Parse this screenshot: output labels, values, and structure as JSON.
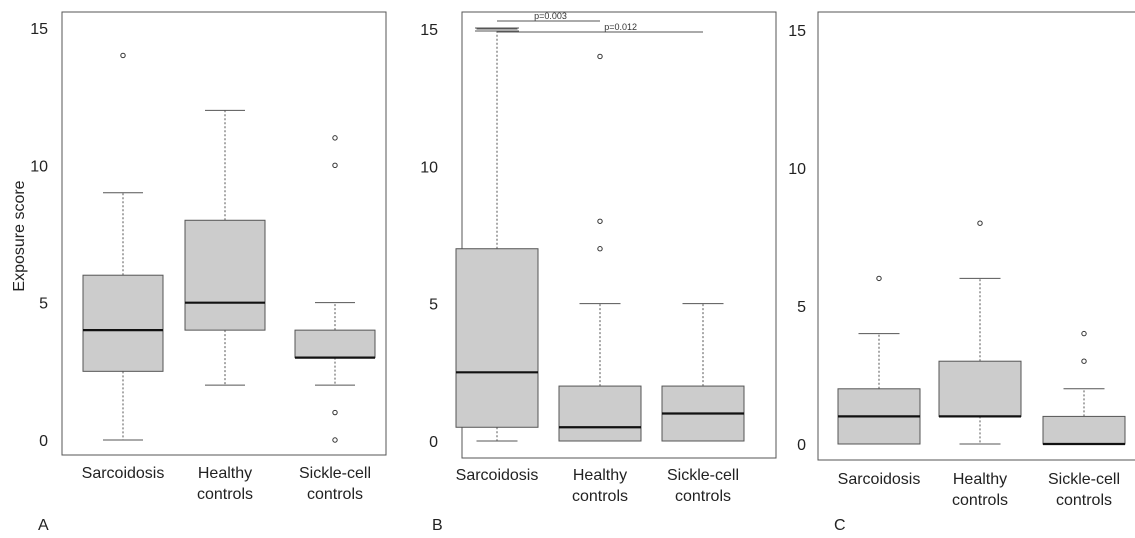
{
  "chart_data": [
    {
      "type": "box",
      "panel_label": "A",
      "ylabel": "Exposure score",
      "yticks": [
        0,
        5,
        10,
        15
      ],
      "ylim": [
        0,
        15
      ],
      "categories": [
        [
          "Sarcoidosis"
        ],
        [
          "Healthy",
          "controls"
        ],
        [
          "Sickle-cell",
          "controls"
        ]
      ],
      "boxes": [
        {
          "min": 0,
          "q1": 2.5,
          "median": 4,
          "q3": 6,
          "max": 9,
          "outliers": [
            14
          ]
        },
        {
          "min": 2,
          "q1": 4,
          "median": 5,
          "q3": 8,
          "max": 12,
          "outliers": []
        },
        {
          "min": 2,
          "q1": 3,
          "median": 3,
          "q3": 4,
          "max": 5,
          "outliers": [
            11,
            10,
            1,
            0
          ]
        }
      ],
      "significance": []
    },
    {
      "type": "box",
      "panel_label": "B",
      "ylabel": "",
      "yticks": [
        0,
        5,
        10,
        15
      ],
      "ylim": [
        0,
        15
      ],
      "categories": [
        [
          "Sarcoidosis"
        ],
        [
          "Healthy",
          "controls"
        ],
        [
          "Sickle-cell",
          "controls"
        ]
      ],
      "boxes": [
        {
          "min": 0,
          "q1": 0.5,
          "median": 2.5,
          "q3": 7,
          "max": 15,
          "outliers": []
        },
        {
          "min": 0,
          "q1": 0,
          "median": 0.5,
          "q3": 2,
          "max": 5,
          "outliers": [
            14,
            8,
            7
          ]
        },
        {
          "min": 0,
          "q1": 0,
          "median": 1,
          "q3": 2,
          "max": 5,
          "outliers": []
        }
      ],
      "significance": [
        {
          "from": 0,
          "to": 1,
          "label": "p=0.003",
          "level": 0
        },
        {
          "from": 0,
          "to": 2,
          "label": "p=0.012",
          "level": 1
        }
      ]
    },
    {
      "type": "box",
      "panel_label": "C",
      "ylabel": "",
      "yticks": [
        0,
        5,
        10,
        15
      ],
      "ylim": [
        0,
        15
      ],
      "categories": [
        [
          "Sarcoidosis"
        ],
        [
          "Healthy",
          "controls"
        ],
        [
          "Sickle-cell",
          "controls"
        ]
      ],
      "boxes": [
        {
          "min": 0,
          "q1": 0,
          "median": 1,
          "q3": 2,
          "max": 4,
          "outliers": [
            6
          ]
        },
        {
          "min": 0,
          "q1": 1,
          "median": 1,
          "q3": 3,
          "max": 6,
          "outliers": [
            8
          ]
        },
        {
          "min": 0,
          "q1": 0,
          "median": 0,
          "q3": 1,
          "max": 2,
          "outliers": [
            4,
            3
          ]
        }
      ],
      "significance": []
    }
  ]
}
